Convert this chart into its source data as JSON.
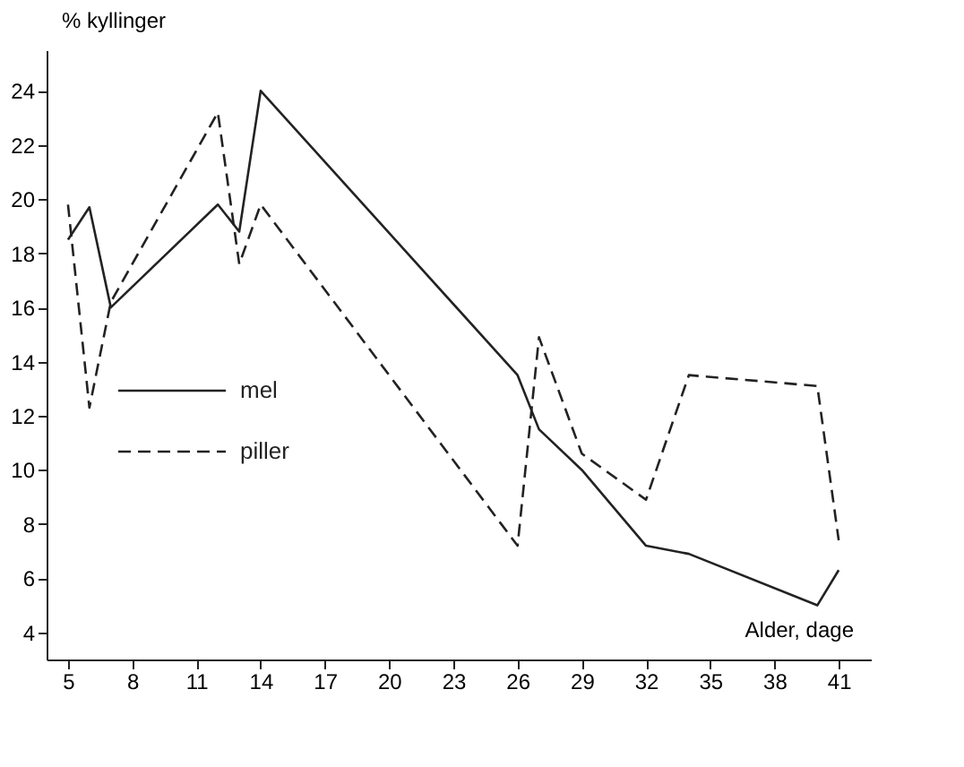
{
  "chart_data": {
    "type": "line",
    "xlabel": "Alder, dage",
    "ylabel": "% kyllinger",
    "x": [
      5,
      6,
      7,
      12,
      13,
      14,
      26,
      27,
      29,
      32,
      34,
      40,
      41
    ],
    "series": [
      {
        "name": "mel",
        "color": "#222222",
        "line_style": "solid",
        "values": [
          18.5,
          19.7,
          16,
          19.8,
          18.8,
          24,
          13.5,
          11.5,
          10,
          7.2,
          6.9,
          5,
          6.3
        ]
      },
      {
        "name": "piller",
        "color": "#222222",
        "line_style": "dashed",
        "values": [
          19.8,
          12.3,
          16.2,
          23.2,
          17.6,
          19.8,
          7.2,
          14.9,
          10.6,
          8.9,
          13.5,
          13.1,
          7.4
        ]
      }
    ],
    "xlim": [
      4,
      42.5
    ],
    "ylim": [
      3,
      25.5
    ],
    "xticks": [
      5,
      8,
      11,
      14,
      17,
      20,
      23,
      26,
      29,
      32,
      35,
      38,
      41
    ],
    "yticks": [
      4,
      6,
      8,
      10,
      12,
      14,
      16,
      18,
      20,
      22,
      24
    ],
    "grid": false,
    "legend": "left",
    "marker": "none"
  }
}
